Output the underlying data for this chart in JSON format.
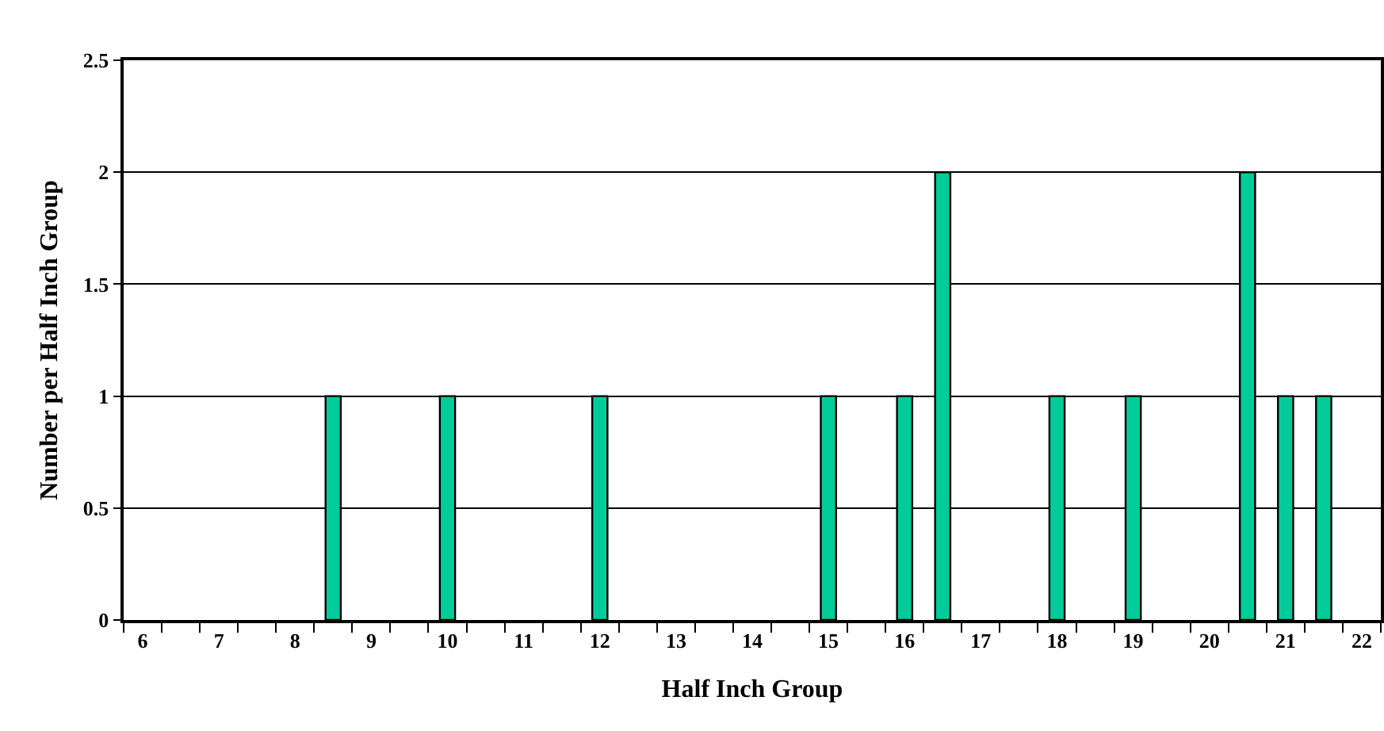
{
  "chart_data": {
    "type": "bar",
    "xlabel": "Half Inch Group",
    "ylabel": "Number per Half Inch Group",
    "categories": [
      "6",
      null,
      "7",
      null,
      "8",
      null,
      "9",
      null,
      "10",
      null,
      "11",
      null,
      "12",
      null,
      "13",
      null,
      "14",
      null,
      "15",
      null,
      "16",
      null,
      "17",
      null,
      "18",
      null,
      "19",
      null,
      "20",
      null,
      "21",
      null,
      "22"
    ],
    "values": [
      0,
      0,
      0,
      0,
      0,
      1,
      0,
      0,
      1,
      0,
      0,
      0,
      1,
      0,
      0,
      0,
      0,
      0,
      1,
      0,
      1,
      2,
      0,
      0,
      1,
      0,
      1,
      0,
      0,
      2,
      1,
      1,
      0
    ],
    "color": "#00cc99",
    "ylim": [
      0,
      2.5
    ],
    "yticks": [
      0,
      0.5,
      1,
      1.5,
      2,
      2.5
    ],
    "grid": "y",
    "legend": false
  }
}
